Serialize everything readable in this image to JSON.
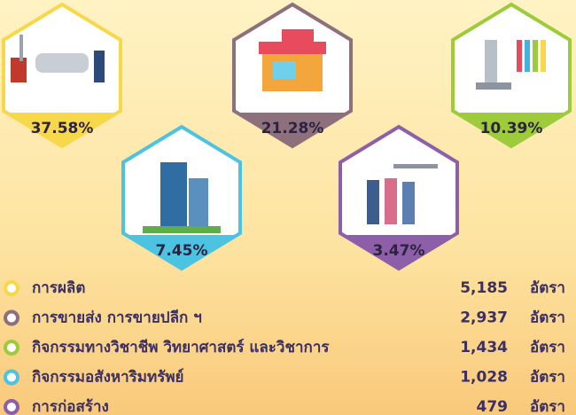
{
  "hexagons": [
    {
      "percent": "37.58%",
      "color": "#f7d84a"
    },
    {
      "percent": "21.28%",
      "color": "#8e6f7c"
    },
    {
      "percent": "10.39%",
      "color": "#9dcb3c"
    },
    {
      "percent": "7.45%",
      "color": "#4cc3e1"
    },
    {
      "percent": "3.47%",
      "color": "#8d5fa9"
    }
  ],
  "legend": [
    {
      "label": "การผลิต",
      "count": "5,185",
      "unit": "อัตรา",
      "color": "#f7d84a"
    },
    {
      "label": "การขายส่ง การขายปลีก ฯ",
      "count": "2,937",
      "unit": "อัตรา",
      "color": "#8e6f7c"
    },
    {
      "label": "กิจกรรมทางวิชาชีพ วิทยาศาสตร์ และวิชาการ",
      "count": "1,434",
      "unit": "อัตรา",
      "color": "#9dcb3c"
    },
    {
      "label": "กิจกรรมอสังหาริมทรัพย์",
      "count": "1,028",
      "unit": "อัตรา",
      "color": "#4cc3e1"
    },
    {
      "label": "การก่อสร้าง",
      "count": "479",
      "unit": "อัตรา",
      "color": "#8d5fa9"
    }
  ]
}
